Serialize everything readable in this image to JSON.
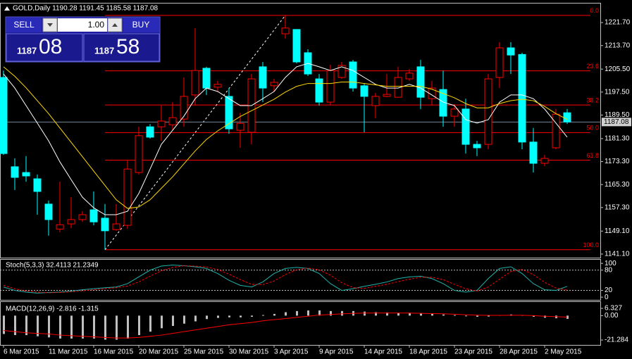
{
  "chart_data": [
    {
      "type": "candlestick",
      "title": "GOLD,Daily  1190.28 1191.45 1185.58 1187.08",
      "categories": [
        "6 Mar 2015",
        null,
        null,
        null,
        "11 Mar 2015",
        null,
        null,
        null,
        "16 Mar 2015",
        null,
        null,
        null,
        "20 Mar 2015",
        null,
        null,
        null,
        "25 Mar 2015",
        null,
        null,
        null,
        "30 Mar 2015",
        null,
        null,
        null,
        "3 Apr 2015",
        null,
        null,
        null,
        "9 Apr 2015",
        null,
        null,
        null,
        "14 Apr 2015",
        null,
        null,
        null,
        "18 Apr 2015",
        null,
        null,
        null,
        "23 Apr 2015",
        null,
        null,
        null,
        "28 Apr 2015",
        null,
        null,
        null,
        "2 May 2015",
        null,
        null
      ],
      "open": [
        1202.6,
        1171.5,
        1169.5,
        1167.3,
        1158.5,
        1149.8,
        1151.6,
        1153.1,
        1156.5,
        1153.6,
        1149.6,
        1151.1,
        1169.5,
        1185.4,
        1185.4,
        1186.1,
        1188.1,
        1196.5,
        1205.8,
        1199.2,
        1196.0,
        1184.2,
        1183.5,
        1206.3,
        1199.7,
        1217.8,
        1219.3,
        1211.2,
        1202.1,
        1194.0,
        1202.6,
        1208.0,
        1199.7,
        1192.8,
        1196.0,
        1195.7,
        1202.1,
        1206.3,
        1195.2,
        1198.4,
        1189.1,
        1191.6,
        1179.3,
        1179.3,
        1202.6,
        1212.9,
        1210.6,
        1180.1,
        1172.7,
        1178.1,
        1190.3
      ],
      "high": [
        1205.0,
        1174.4,
        1175.2,
        1168.8,
        1159.7,
        1166.3,
        1160.9,
        1156.0,
        1162.9,
        1158.5,
        1158.5,
        1173.7,
        1185.4,
        1186.4,
        1192.8,
        1194.0,
        1202.6,
        1219.8,
        1206.3,
        1201.4,
        1198.9,
        1190.3,
        1203.8,
        1208.0,
        1202.1,
        1224.2,
        1219.3,
        1212.4,
        1203.8,
        1207.0,
        1208.0,
        1208.7,
        1200.6,
        1197.2,
        1203.8,
        1206.3,
        1205.5,
        1208.7,
        1201.4,
        1205.0,
        1193.3,
        1195.2,
        1180.5,
        1203.8,
        1214.9,
        1214.9,
        1211.2,
        1185.0,
        1175.6,
        1191.6,
        1191.6
      ],
      "low": [
        1175.6,
        1163.4,
        1166.3,
        1154.8,
        1147.5,
        1148.7,
        1150.1,
        1152.3,
        1151.1,
        1142.6,
        1149.2,
        1149.9,
        1168.8,
        1181.3,
        1180.5,
        1184.2,
        1185.4,
        1192.8,
        1196.5,
        1197.7,
        1183.0,
        1178.1,
        1179.3,
        1194.0,
        1197.7,
        1216.1,
        1207.5,
        1203.1,
        1192.8,
        1192.8,
        1202.1,
        1197.7,
        1183.5,
        1188.4,
        1195.7,
        1195.7,
        1201.4,
        1191.6,
        1192.8,
        1185.4,
        1185.4,
        1176.1,
        1175.2,
        1177.6,
        1198.9,
        1203.8,
        1177.6,
        1169.5,
        1171.7,
        1177.6,
        1186.4
      ],
      "close": [
        1176.1,
        1167.8,
        1168.3,
        1162.9,
        1153.1,
        1151.3,
        1153.1,
        1154.8,
        1152.3,
        1149.2,
        1151.6,
        1170.7,
        1182.3,
        1181.8,
        1187.4,
        1188.6,
        1196.0,
        1205.0,
        1198.9,
        1200.2,
        1184.7,
        1186.6,
        1202.1,
        1198.9,
        1200.9,
        1219.8,
        1208.0,
        1203.8,
        1194.0,
        1205.0,
        1206.8,
        1198.9,
        1196.0,
        1196.0,
        1196.7,
        1202.6,
        1204.1,
        1195.7,
        1198.9,
        1189.1,
        1191.6,
        1179.3,
        1178.1,
        1202.1,
        1212.9,
        1210.4,
        1180.1,
        1172.7,
        1174.4,
        1189.8,
        1187.1
      ],
      "up_color": "#ff0000",
      "down_color": "#00ffff",
      "series": [
        {
          "color": "#ffffff",
          "values": [
            1203.8,
            1198.9,
            1192.8,
            1186.7,
            1180.5,
            1173.2,
            1167.0,
            1160.9,
            1157.2,
            1154.8,
            1154.8,
            1156.0,
            1162.2,
            1170.7,
            1179.3,
            1184.2,
            1189.1,
            1195.2,
            1198.9,
            1197.7,
            1195.2,
            1192.8,
            1192.8,
            1195.2,
            1197.7,
            1202.6,
            1206.3,
            1207.5,
            1206.3,
            1205.0,
            1206.3,
            1205.0,
            1202.6,
            1200.2,
            1198.9,
            1198.9,
            1200.2,
            1198.9,
            1196.5,
            1194.0,
            1192.8,
            1187.9,
            1186.7,
            1187.9,
            1194.0,
            1196.5,
            1196.5,
            1195.2,
            1191.6,
            1186.7,
            1181.8
          ]
        },
        {
          "color": "#ffd700",
          "values": [
            1206.3,
            1203.0,
            1199.0,
            1194.5,
            1190.0,
            1185.0,
            1180.0,
            1175.0,
            1170.0,
            1165.0,
            1160.0,
            1157.0,
            1157.5,
            1160.0,
            1164.0,
            1168.0,
            1172.5,
            1177.0,
            1181.0,
            1184.0,
            1186.5,
            1189.0,
            1191.0,
            1193.0,
            1195.0,
            1197.5,
            1199.5,
            1200.5,
            1200.5,
            1200.5,
            1201.0,
            1201.0,
            1200.5,
            1200.0,
            1199.5,
            1199.5,
            1199.5,
            1199.5,
            1198.5,
            1197.0,
            1195.5,
            1193.5,
            1192.0,
            1192.0,
            1193.5,
            1194.5,
            1195.0,
            1194.5,
            1192.5,
            1190.0,
            1188.0
          ]
        }
      ],
      "fib_color": "#ff0000",
      "fib_levels": [
        {
          "value": 0,
          "label": "0.0",
          "price": 1224.2
        },
        {
          "value": 23.6,
          "label": "23.6",
          "price": 1204.9
        },
        {
          "value": 38.2,
          "label": "38.2",
          "price": 1193.0
        },
        {
          "value": 50,
          "label": "50.0",
          "price": 1183.4
        },
        {
          "value": 61.8,
          "label": "61.8",
          "price": 1173.8
        },
        {
          "value": 100,
          "label": "100.0",
          "price": 1142.6
        }
      ],
      "current_price": {
        "value": 1187.08,
        "label": "1187.08"
      },
      "ylim": [
        1140.1,
        1227.6
      ],
      "yticks": [
        {
          "value": 1221.7,
          "label": "1221.70"
        },
        {
          "value": 1213.7,
          "label": "1213.70"
        },
        {
          "value": 1205.5,
          "label": "1205.50"
        },
        {
          "value": 1197.5,
          "label": "1197.50"
        },
        {
          "value": 1189.5,
          "label": "1189.50"
        },
        {
          "value": 1181.3,
          "label": "1181.30"
        },
        {
          "value": 1173.3,
          "label": "1173.30"
        },
        {
          "value": 1165.3,
          "label": "1165.30"
        },
        {
          "value": 1157.3,
          "label": "1157.30"
        },
        {
          "value": 1149.1,
          "label": "1149.10"
        },
        {
          "value": 1141.1,
          "label": "1141.10"
        }
      ]
    },
    {
      "type": "line",
      "title": "Stoch(5,3,3) 32.4113 21.2349",
      "series": [
        {
          "color": "#20b2aa",
          "values": [
            30,
            20,
            15,
            12,
            14,
            15,
            18,
            22,
            25,
            28,
            30,
            40,
            60,
            80,
            92,
            95,
            93,
            90,
            85,
            70,
            50,
            35,
            30,
            45,
            70,
            85,
            88,
            85,
            70,
            40,
            20,
            25,
            32,
            38,
            45,
            55,
            60,
            62,
            55,
            40,
            20,
            15,
            20,
            55,
            85,
            90,
            70,
            40,
            22,
            20,
            32
          ]
        },
        {
          "color": "#ff0000",
          "dashed": true,
          "values": [
            35,
            25,
            18,
            15,
            13,
            14,
            16,
            19,
            22,
            25,
            28,
            33,
            45,
            62,
            78,
            88,
            93,
            92,
            89,
            82,
            68,
            52,
            38,
            37,
            48,
            67,
            81,
            86,
            81,
            65,
            43,
            28,
            26,
            32,
            38,
            46,
            53,
            59,
            59,
            52,
            38,
            25,
            18,
            30,
            53,
            76,
            82,
            67,
            44,
            27,
            21
          ]
        }
      ],
      "levels": [
        80,
        20
      ],
      "ylim": [
        -8,
        117
      ],
      "yticks": [
        100,
        80,
        20,
        0
      ]
    },
    {
      "type": "bar",
      "title": "MACD(12,26,9) -2.816 -1.315",
      "values": [
        -16,
        -17,
        -17,
        -18,
        -19,
        -20,
        -20,
        -20,
        -20,
        -21,
        -21,
        -20,
        -17,
        -14,
        -11,
        -9,
        -7,
        -5,
        -3,
        -2,
        -1.5,
        -1.5,
        -1,
        0.5,
        1.5,
        3,
        4,
        4.5,
        4.5,
        4,
        4,
        4,
        3.5,
        3,
        2.8,
        2.5,
        2.5,
        2,
        1.5,
        1,
        0.5,
        -0.5,
        -1,
        -0.8,
        0.5,
        1,
        0.5,
        -1,
        -1.8,
        -2.3,
        -2.8
      ],
      "color": "#c0c0c0",
      "series": [
        {
          "color": "#ff0000",
          "values": [
            -13,
            -14,
            -15,
            -15.5,
            -16,
            -17,
            -17.5,
            -18,
            -18.5,
            -19,
            -19.5,
            -19.5,
            -19,
            -18,
            -17,
            -15.5,
            -14,
            -12.5,
            -11,
            -9.5,
            -8,
            -7,
            -6,
            -4.5,
            -3.5,
            -2.5,
            -1.5,
            -0.5,
            0.5,
            1,
            1.5,
            2,
            2.2,
            2.3,
            2.3,
            2.3,
            2.2,
            2,
            1.8,
            1.6,
            1.2,
            0.8,
            0.4,
            0.2,
            0.2,
            0.3,
            0.3,
            0,
            -0.5,
            -0.9,
            -1.3
          ]
        }
      ],
      "ylim": [
        -27.4,
        11.9
      ],
      "yticks": [
        6.327,
        {
          "value": 0,
          "label": "0.00"
        },
        -21.284
      ]
    }
  ],
  "trade_panel": {
    "sell": "SELL",
    "buy": "BUY",
    "lot": "1.00",
    "bid_big": "1187",
    "bid_small": "08",
    "ask_big": "1187",
    "ask_small": "58"
  }
}
